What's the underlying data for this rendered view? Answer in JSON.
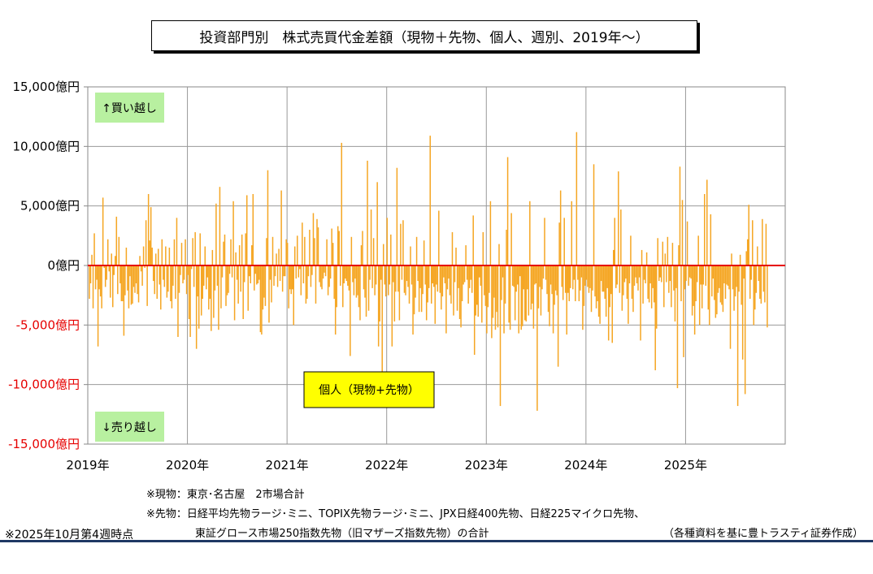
{
  "title": "投資部門別　株式売買代金差額（現物＋先物、個人、週別、2019年～）",
  "chart_data": {
    "type": "bar",
    "x_start": "2019-01",
    "x_end": "2025-10",
    "xticks": [
      "2019年",
      "2020年",
      "2021年",
      "2022年",
      "2023年",
      "2024年",
      "2025年"
    ],
    "yticks": [
      "15,000億円",
      "10,000億円",
      "5,000億円",
      "0億円",
      "-5,000億円",
      "-10,000億円",
      "-15,000億円"
    ],
    "ylim": [
      -15000,
      15000
    ],
    "grid": true,
    "bar_color": "#f5a623",
    "zero_line_color": "#e60000",
    "negative_label_color": "#e60000",
    "labels": {
      "buy": "↑買い越し",
      "sell": "↓売り越し",
      "series": "個人（現物+先物）"
    },
    "label_bg_green": "#b8f0a0",
    "label_bg_yellow": "#ffff00",
    "series": [
      {
        "name": "個人（現物+先物）",
        "values": [
          -2800,
          -1500,
          900,
          -3600,
          2700,
          -2000,
          -1200,
          -6800,
          -2000,
          -2600,
          -3600,
          5700,
          -200,
          -1800,
          -1200,
          2200,
          -500,
          -2700,
          1000,
          -3500,
          -800,
          800,
          4100,
          -2400,
          2400,
          -1500,
          -3000,
          -3000,
          -5900,
          -2500,
          1500,
          -2100,
          -3600,
          -900,
          -3300,
          -3200,
          -1800,
          -2300,
          -1500,
          -2400,
          -3100,
          800,
          -500,
          -1700,
          1600,
          -200,
          3800,
          -3400,
          6000,
          2100,
          4900,
          1500,
          -1300,
          -2400,
          1000,
          -2800,
          1400,
          -1600,
          -3700,
          2200,
          -1200,
          -1800,
          1600,
          -2700,
          -2200,
          1500,
          -3000,
          -3600,
          -1700,
          2200,
          -2800,
          4000,
          -6000,
          -2300,
          -800,
          1900,
          -1500,
          -1200,
          2200,
          -2400,
          -800,
          -4500,
          -6000,
          -300,
          2300,
          -1800,
          2800,
          -7000,
          -2600,
          -5300,
          2700,
          -4200,
          -2800,
          -1700,
          1600,
          -2000,
          -1000,
          -3700,
          -2800,
          -5500,
          1300,
          -4400,
          -2100,
          5200,
          -1700,
          -5400,
          6600,
          -3600,
          -1000,
          2000,
          2600,
          -3400,
          -2500,
          -2300,
          -700,
          2200,
          -1000,
          5400,
          -4600,
          1100,
          -1200,
          -3200,
          1700,
          -2200,
          2600,
          -4500,
          -1400,
          2700,
          5900,
          -3800,
          -900,
          -1500,
          1700,
          6000,
          -2100,
          -700,
          -1600,
          -1500,
          -1200,
          -5600,
          -5800,
          -3700,
          -2700,
          -3400,
          2300,
          8000,
          -4800,
          -1200,
          -3100,
          2400,
          -1700,
          -900,
          1000,
          -1800,
          1400,
          -1300,
          6300,
          -2200,
          -900,
          -900,
          2200,
          1900,
          -3600,
          -2000,
          -2400,
          -2000,
          -5000,
          1600,
          -1100,
          2500,
          -1000,
          -300,
          -2500,
          3600,
          -1500,
          2400,
          -3200,
          -2800,
          -900,
          3000,
          -1800,
          -800,
          4400,
          2300,
          -3200,
          3900,
          3200,
          -1400,
          -1800,
          -2000,
          -1100,
          -600,
          -900,
          2200,
          -2500,
          -1800,
          -1100,
          3100,
          1900,
          -2800,
          -5800,
          -3500,
          3300,
          2900,
          -1700,
          10300,
          -3500,
          -1500,
          -1100,
          -1300,
          -1700,
          -2100,
          -7600,
          2400,
          -1400,
          -2500,
          -1100,
          -2700,
          -2500,
          -3500,
          -4600,
          1700,
          2900,
          -2000,
          -2700,
          -4300,
          8800,
          -3800,
          -1200,
          4700,
          -1900,
          2300,
          -2500,
          -1600,
          7000,
          -6800,
          -4700,
          -1200,
          -9000,
          1800,
          -1600,
          -2600,
          4000,
          -2500,
          -1600,
          2600,
          -6800,
          -1400,
          -4700,
          -2200,
          8200,
          -2200,
          -4600,
          3500,
          -1200,
          3800,
          -2300,
          -2500,
          -1300,
          -1800,
          -3200,
          1600,
          -1600,
          -5800,
          -4100,
          -2700,
          2400,
          -1300,
          -3900,
          -1900,
          -3900,
          -2400,
          2100,
          -1600,
          -4600,
          -3100,
          -1900,
          10900,
          -3200,
          -1500,
          -1800,
          -4900,
          -1600,
          -2200,
          4600,
          -2300,
          -3700,
          -2600,
          -1000,
          -1500,
          -5700,
          -2000,
          -1100,
          -2500,
          -3200,
          2800,
          -4200,
          -1400,
          1500,
          -3800,
          -1900,
          -4500,
          -5200,
          -3000,
          -1600,
          -1400,
          1700,
          -1200,
          -3200,
          -1900,
          -1200,
          -2300,
          4200,
          -7500,
          -4200,
          -3300,
          -4300,
          -1000,
          -1700,
          -4800,
          2800,
          -2500,
          -3400,
          -5700,
          -3500,
          -2300,
          5400,
          -6100,
          -4400,
          -2700,
          -5400,
          -3900,
          -5200,
          1800,
          -11800,
          -2900,
          -1000,
          -5700,
          -3200,
          3000,
          9100,
          -4800,
          -5400,
          4400,
          -1700,
          -1800,
          -4600,
          -2200,
          -1600,
          -5700,
          -900,
          -5400,
          -5100,
          -2000,
          -4600,
          -4700,
          -2000,
          -4200,
          5400,
          -3700,
          -3200,
          -5300,
          -1600,
          -1500,
          -12200,
          -3600,
          -1800,
          -4200,
          -2000,
          -1100,
          4000,
          -1200,
          -2400,
          -3900,
          -5100,
          -1600,
          -2400,
          -5700,
          -3300,
          -2100,
          -2500,
          -8500,
          3600,
          6300,
          -1800,
          -2900,
          4000,
          -2300,
          -5800,
          -2300,
          -3000,
          -1900,
          5400,
          -2000,
          -1200,
          -3000,
          11200,
          -1200,
          -3000,
          -2100,
          -1000,
          -5400,
          -3400,
          -1700,
          -1200,
          -1800,
          -2300,
          -1900,
          -3900,
          -2100,
          8500,
          -2600,
          -3600,
          -3000,
          -4300,
          -4900,
          -1300,
          -2200,
          -2200,
          -2800,
          -4300,
          -1900,
          -6300,
          -3500,
          -2400,
          -6500,
          1300,
          4000,
          -1900,
          -1600,
          7900,
          -2300,
          4700,
          -3800,
          -2500,
          -1400,
          -1100,
          -2800,
          -4900,
          -1500,
          2500,
          -2800,
          -3900,
          -1700,
          -1000,
          -1500,
          -2100,
          -1000,
          -6300,
          1300,
          -3200,
          -1200,
          -1500,
          1100,
          -2800,
          -3100,
          -1500,
          -3600,
          -1900,
          -3100,
          -8800,
          -5300,
          2300,
          -1300,
          -1000,
          -1400,
          2000,
          -3500,
          1000,
          -1400,
          2400,
          -2300,
          -1300,
          -3500,
          1900,
          -2100,
          -4700,
          -1900,
          -10300,
          1700,
          8300,
          -3000,
          5500,
          -7700,
          -2000,
          -1300,
          3700,
          -1700,
          -1000,
          -1100,
          -4200,
          -3400,
          -5800,
          -3000,
          -1400,
          2500,
          -5000,
          -1600,
          -3600,
          -1600,
          6000,
          -1700,
          7200,
          -3700,
          -5000,
          4300,
          -2600,
          -1100,
          -2900,
          -4400,
          -4100,
          -2300,
          -1900,
          -3100,
          -3300,
          -3900,
          -1500,
          -2800,
          -1600,
          -1700,
          -2000,
          -7000,
          1000,
          -2000,
          -3800,
          -2600,
          -1800,
          -11800,
          -2200,
          900,
          -3300,
          -7900,
          -1100,
          -10800,
          1200,
          2200,
          5100,
          -2800,
          -1200,
          3800,
          -5000,
          -3700,
          -2300,
          1600,
          -1300,
          -2800,
          -3200,
          3900,
          -2200,
          -3100,
          3500,
          -5200
        ]
      }
    ]
  },
  "notes": {
    "spot": "※現物：東京･名古屋　2市場合計",
    "futures1": "※先物：日経平均先物ラージ･ミニ、TOPIX先物ラージ･ミニ、JPX日経400先物、日経225マイクロ先物、",
    "futures2": "東証グロース市場250指数先物（旧マザーズ指数先物）の合計",
    "asof": "※2025年10月第4週時点",
    "source": "（各種資料を基に豊トラスティ証券作成）"
  }
}
